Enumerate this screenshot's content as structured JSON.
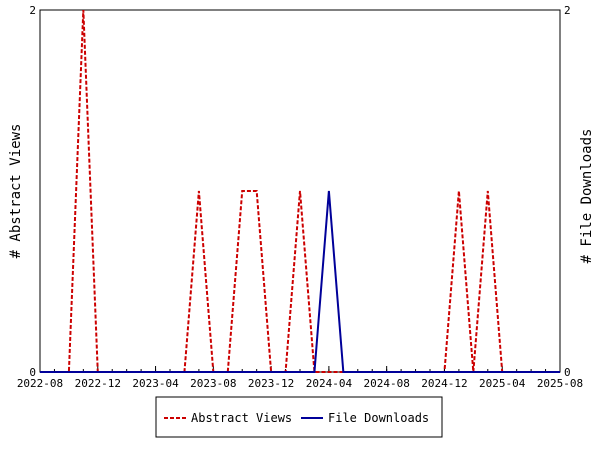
{
  "chart_data": {
    "type": "line",
    "title": "",
    "xlabel": "",
    "ylabel": "# Abstract Views",
    "y2label": "# File Downloads",
    "x_ticks": [
      "2022-08",
      "2022-12",
      "2023-04",
      "2023-08",
      "2023-12",
      "2024-04",
      "2024-08",
      "2024-12",
      "2025-04",
      "2025-08"
    ],
    "x_range": [
      "2022-08",
      "2025-08"
    ],
    "ylim": [
      0,
      2
    ],
    "y_ticks": [
      "0",
      "2"
    ],
    "y2lim": [
      0,
      2
    ],
    "y2_ticks": [
      "0",
      "2"
    ],
    "grid": false,
    "legend_position": "bottom",
    "series": [
      {
        "name": "Abstract Views",
        "color": "#cc0000",
        "dash": "dashed",
        "axis": "left",
        "x": [
          "2022-08",
          "2022-09",
          "2022-10",
          "2022-11",
          "2022-12",
          "2023-01",
          "2023-02",
          "2023-03",
          "2023-04",
          "2023-05",
          "2023-06",
          "2023-07",
          "2023-08",
          "2023-09",
          "2023-10",
          "2023-11",
          "2023-12",
          "2024-01",
          "2024-02",
          "2024-03",
          "2024-04",
          "2024-05",
          "2024-06",
          "2024-07",
          "2024-08",
          "2024-09",
          "2024-10",
          "2024-11",
          "2024-12",
          "2025-01",
          "2025-02",
          "2025-03",
          "2025-04",
          "2025-05",
          "2025-06",
          "2025-07",
          "2025-08"
        ],
        "y": [
          0,
          0,
          0,
          2,
          0,
          0,
          0,
          0,
          0,
          0,
          0,
          1,
          0,
          0,
          1,
          1,
          0,
          0,
          1,
          0,
          0,
          0,
          0,
          0,
          0,
          0,
          0,
          0,
          0,
          1,
          0,
          1,
          0,
          0,
          0,
          0,
          0
        ]
      },
      {
        "name": "File Downloads",
        "color": "#000099",
        "dash": "solid",
        "axis": "right",
        "x": [
          "2022-08",
          "2022-09",
          "2022-10",
          "2022-11",
          "2022-12",
          "2023-01",
          "2023-02",
          "2023-03",
          "2023-04",
          "2023-05",
          "2023-06",
          "2023-07",
          "2023-08",
          "2023-09",
          "2023-10",
          "2023-11",
          "2023-12",
          "2024-01",
          "2024-02",
          "2024-03",
          "2024-04",
          "2024-05",
          "2024-06",
          "2024-07",
          "2024-08",
          "2024-09",
          "2024-10",
          "2024-11",
          "2024-12",
          "2025-01",
          "2025-02",
          "2025-03",
          "2025-04",
          "2025-05",
          "2025-06",
          "2025-07",
          "2025-08"
        ],
        "y": [
          0,
          0,
          0,
          0,
          0,
          0,
          0,
          0,
          0,
          0,
          0,
          0,
          0,
          0,
          0,
          0,
          0,
          0,
          0,
          0,
          1,
          0,
          0,
          0,
          0,
          0,
          0,
          0,
          0,
          0,
          0,
          0,
          0,
          0,
          0,
          0,
          0
        ]
      }
    ]
  }
}
